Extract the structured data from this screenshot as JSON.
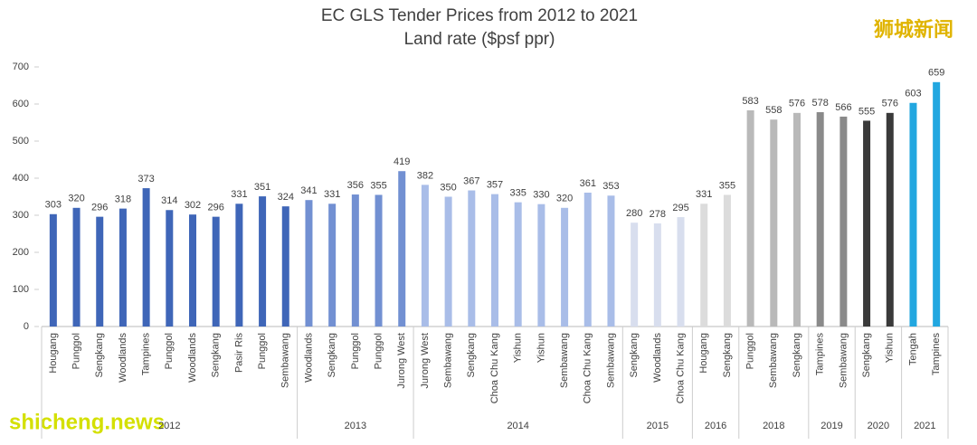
{
  "chart_data": {
    "type": "bar",
    "title": "EC GLS Tender Prices from 2012 to 2021",
    "subtitle": "Land rate ($psf ppr)",
    "ylim": [
      0,
      700
    ],
    "yticks": [
      0,
      100,
      200,
      300,
      400,
      500,
      600,
      700
    ],
    "grid": false,
    "groups": [
      {
        "label": "2012",
        "color": "#3f66b8",
        "categories": [
          "Hougang",
          "Punggol",
          "Sengkang",
          "Woodlands",
          "Tampines",
          "Punggol",
          "Woodlands",
          "Sengkang",
          "Pasir Ris",
          "Punggol",
          "Sembawang"
        ],
        "values": [
          303,
          320,
          296,
          318,
          373,
          314,
          302,
          296,
          331,
          351,
          324
        ]
      },
      {
        "label": "2013",
        "color": "#7290d2",
        "categories": [
          "Woodlands",
          "Sengkang",
          "Punggol",
          "Punggol",
          "Jurong West"
        ],
        "values": [
          341,
          331,
          356,
          355,
          419
        ]
      },
      {
        "label": "2014",
        "color": "#a9bde8",
        "categories": [
          "Jurong West",
          "Sembawang",
          "Sengkang",
          "Choa Chu Kang",
          "Yishun",
          "Yishun",
          "Sembawang",
          "Choa Chu Kang",
          "Sembawang"
        ],
        "values": [
          382,
          350,
          367,
          357,
          335,
          330,
          320,
          361,
          353
        ]
      },
      {
        "label": "2015",
        "color": "#d8deee",
        "categories": [
          "Sengkang",
          "Woodlands",
          "Choa Chu Kang"
        ],
        "values": [
          280,
          278,
          295
        ]
      },
      {
        "label": "2016",
        "color": "#dcdcdc",
        "categories": [
          "Hougang",
          "Sengkang"
        ],
        "values": [
          331,
          355
        ]
      },
      {
        "label": "2018",
        "color": "#b9b9b9",
        "categories": [
          "Punggol",
          "Sembawang",
          "Sengkang"
        ],
        "values": [
          583,
          558,
          576
        ]
      },
      {
        "label": "2019",
        "color": "#8a8a8a",
        "categories": [
          "Tampines",
          "Sembawang"
        ],
        "values": [
          578,
          566
        ]
      },
      {
        "label": "2020",
        "color": "#3a3a3a",
        "categories": [
          "Sengkang",
          "Yishun"
        ],
        "values": [
          555,
          576
        ]
      },
      {
        "label": "2021",
        "color": "#22a7e0",
        "categories": [
          "Tengah",
          "Tampines"
        ],
        "values": [
          603,
          659
        ]
      }
    ]
  },
  "watermarks": {
    "top_right": "狮城新闻",
    "bottom_left": "shicheng.news"
  }
}
